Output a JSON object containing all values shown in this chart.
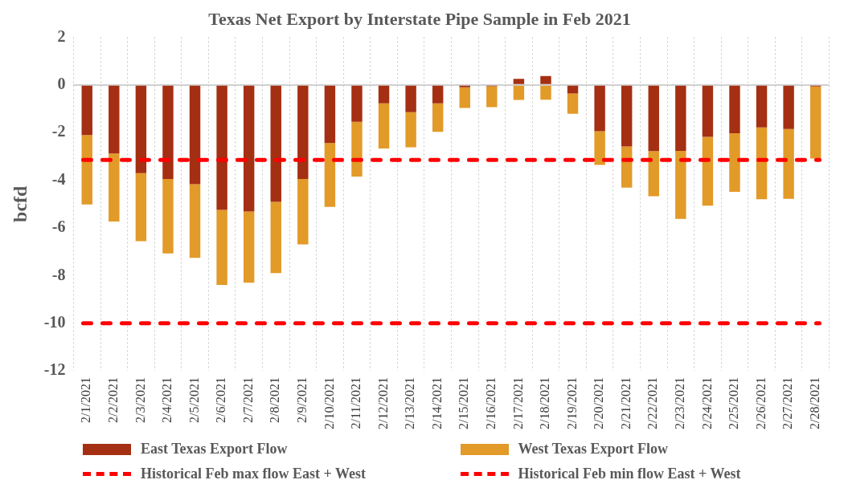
{
  "chart_data": {
    "type": "bar",
    "title": "Texas Net Export by Interstate Pipe Sample in Feb 2021",
    "ylabel": "bcfd",
    "categories": [
      "2/1/2021",
      "2/2/2021",
      "2/3/2021",
      "2/4/2021",
      "2/5/2021",
      "2/6/2021",
      "2/7/2021",
      "2/8/2021",
      "2/9/2021",
      "2/10/2021",
      "2/11/2021",
      "2/12/2021",
      "2/13/2021",
      "2/14/2021",
      "2/15/2021",
      "2/16/2021",
      "2/17/2021",
      "2/18/2021",
      "2/19/2021",
      "2/20/2021",
      "2/21/2021",
      "2/22/2021",
      "2/23/2021",
      "2/24/2021",
      "2/25/2021",
      "2/26/2021",
      "2/27/2021",
      "2/28/2021"
    ],
    "stacked": true,
    "series": [
      {
        "name": "East Texas Export Flow",
        "color": "#a52f12",
        "values": [
          -2.1,
          -2.88,
          -3.7,
          -3.95,
          -4.17,
          -5.24,
          -5.31,
          -4.91,
          -3.95,
          -2.44,
          -1.55,
          -0.77,
          -1.14,
          -0.77,
          -0.1,
          -0.06,
          0.25,
          0.37,
          -0.36,
          -1.94,
          -2.58,
          -2.78,
          -2.77,
          -2.18,
          -2.03,
          -1.78,
          -1.85,
          -0.07
        ]
      },
      {
        "name": "West Texas Export Flow",
        "color": "#e29a28",
        "values": [
          -2.92,
          -2.85,
          -2.86,
          -3.12,
          -3.09,
          -3.15,
          -2.99,
          -2.99,
          -2.74,
          -2.68,
          -2.3,
          -1.9,
          -1.48,
          -1.2,
          -0.87,
          -0.87,
          -0.63,
          -0.62,
          -0.85,
          -1.42,
          -1.73,
          -1.89,
          -2.85,
          -2.89,
          -2.46,
          -3.02,
          -2.93,
          -3.02
        ]
      }
    ],
    "ref_lines": [
      {
        "axis": "y",
        "value": -3.15,
        "label": "Historical Feb max flow East + West",
        "color": "#ff0000",
        "line_style": "dashed"
      },
      {
        "axis": "y",
        "value": -10,
        "label": "Historical Feb min flow East + West",
        "color": "#ff0000",
        "line_style": "dashed"
      }
    ],
    "ylim": [
      -12,
      2
    ],
    "yticks": [
      -12,
      -10,
      -8,
      -6,
      -4,
      -2,
      0,
      2
    ],
    "grid": "x",
    "legend": "bottom"
  }
}
